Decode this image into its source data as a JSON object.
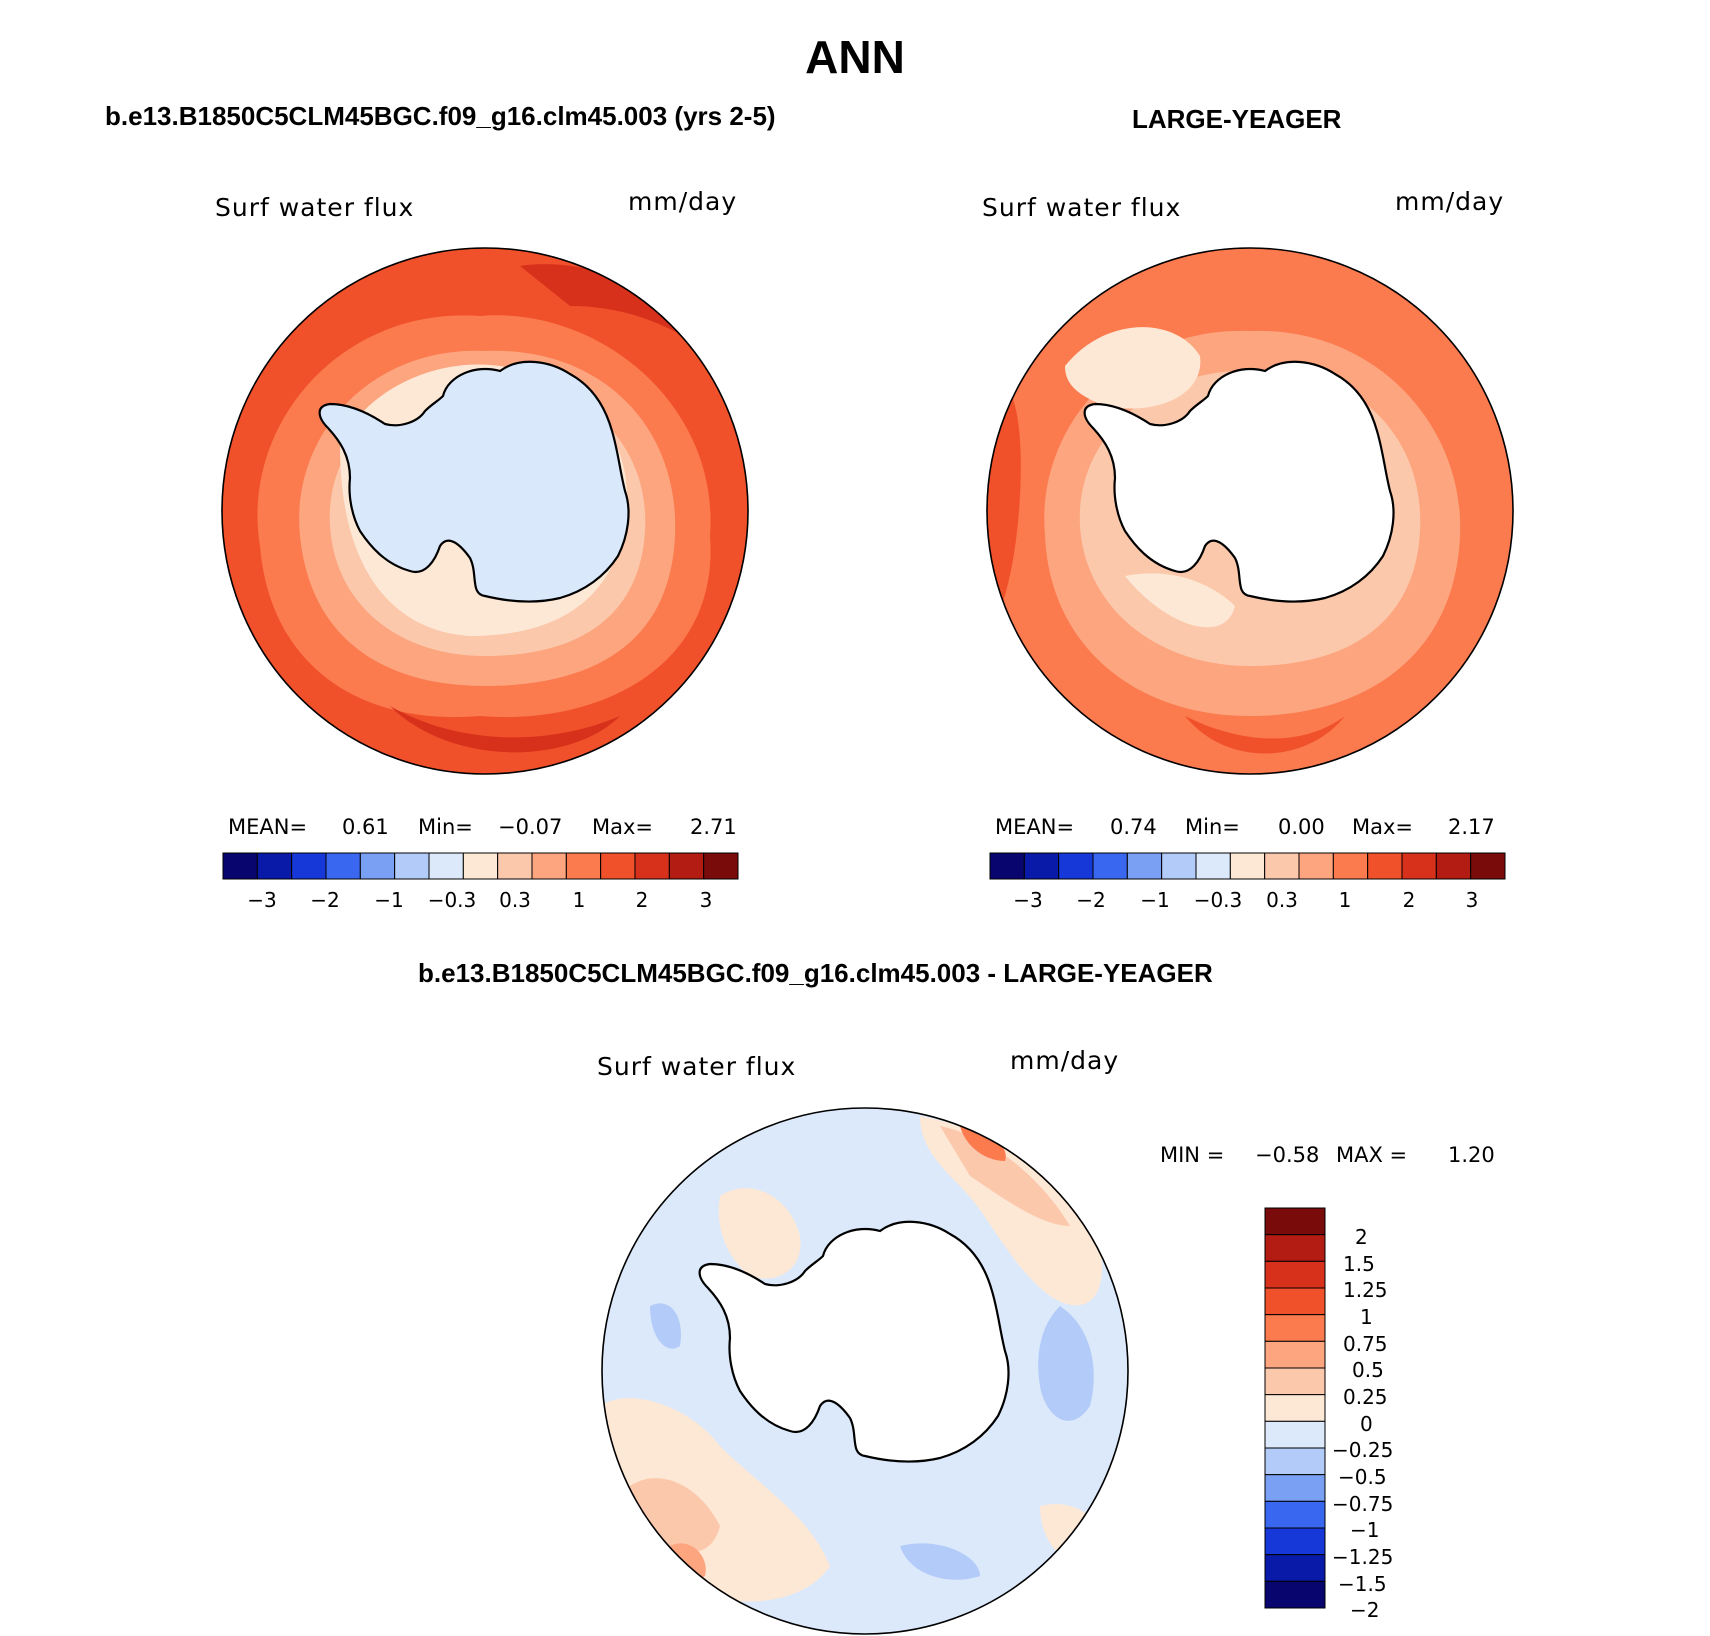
{
  "main_title": "ANN",
  "panels": [
    {
      "title": "b.e13.B1850C5CLM45BGC.f09_g16.clm45.003 (yrs 2-5)",
      "variable": "Surf water flux",
      "units": "mm/day",
      "stats": {
        "mean_label": "MEAN=",
        "mean": "0.61",
        "min_label": "Min=",
        "min": "−0.07",
        "max_label": "Max=",
        "max": "2.71"
      },
      "colorbar_ticks": [
        "−3",
        "−2",
        "−1",
        "−0.3",
        "0.3",
        "1",
        "2",
        "3"
      ]
    },
    {
      "title": "LARGE-YEAGER",
      "variable": "Surf water flux",
      "units": "mm/day",
      "stats": {
        "mean_label": "MEAN=",
        "mean": "0.74",
        "min_label": "Min=",
        "min": "0.00",
        "max_label": "Max=",
        "max": "2.17"
      },
      "colorbar_ticks": [
        "−3",
        "−2",
        "−1",
        "−0.3",
        "0.3",
        "1",
        "2",
        "3"
      ]
    },
    {
      "title": "b.e13.B1850C5CLM45BGC.f09_g16.clm45.003 - LARGE-YEAGER",
      "variable": "Surf water flux",
      "units": "mm/day",
      "stats": {
        "min_label": "MIN =",
        "min": "−0.58",
        "max_label": "MAX =",
        "max": "1.20"
      },
      "colorbar_ticks": [
        "2",
        "1.5",
        "1.25",
        "1",
        "0.75",
        "0.5",
        "0.25",
        "0",
        "−0.25",
        "−0.5",
        "−0.75",
        "−1",
        "−1.25",
        "−1.5",
        "−2"
      ]
    }
  ],
  "colors": {
    "scale_abs": [
      "#08066e",
      "#0a1aa8",
      "#1638d8",
      "#3a67f0",
      "#7aa0f4",
      "#b3cbf8",
      "#dbe9fb",
      "#fde8d6",
      "#fcc8ab",
      "#fca57f",
      "#fb7a4e",
      "#f0512a",
      "#d8311b",
      "#b21c12",
      "#7a0b0b"
    ],
    "scale_diff": [
      "#7a0b0b",
      "#b21c12",
      "#d8311b",
      "#f0512a",
      "#fb7a4e",
      "#fca57f",
      "#fcc8ab",
      "#fde8d6",
      "#dbe9fb",
      "#b3cbf8",
      "#7aa0f4",
      "#3a67f0",
      "#1638d8",
      "#0a1aa8",
      "#08066e"
    ],
    "land_model": "#d9e9fb",
    "land_obs": "#ffffff"
  }
}
